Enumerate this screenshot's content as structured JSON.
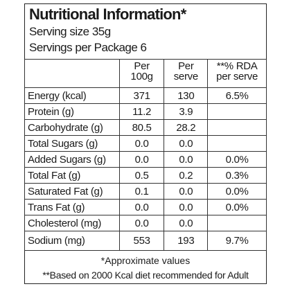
{
  "header": {
    "title": "Nutritional Information*",
    "serving_size": "Serving size 35g",
    "servings_per_package": "Servings per Package 6"
  },
  "table": {
    "columns": [
      [
        "Per",
        "100g"
      ],
      [
        "Per",
        "serve"
      ],
      [
        "**% RDA",
        "per serve"
      ]
    ],
    "rows": [
      [
        "Energy (kcal)",
        "371",
        "130",
        "6.5%"
      ],
      [
        "Protein (g)",
        "11.2",
        "3.9",
        null
      ],
      [
        "Carbohydrate (g)",
        "80.5",
        "28.2",
        null
      ],
      [
        "Total Sugars (g)",
        "0.0",
        "0.0",
        null
      ],
      [
        "Added Sugars (g)",
        "0.0",
        "0.0",
        "0.0%"
      ],
      [
        "Total Fat (g)",
        "0.5",
        "0.2",
        "0.3%"
      ],
      [
        "Saturated Fat (g)",
        "0.1",
        "0.0",
        "0.0%"
      ],
      [
        "Trans Fat (g)",
        "0.0",
        "0.0",
        "0.0%"
      ],
      [
        "Cholesterol (mg)",
        "0.0",
        "0.0",
        null
      ],
      [
        "Sodium (mg)",
        "553",
        "193",
        "9.7%"
      ]
    ]
  },
  "footer": {
    "note1": "*Approximate values",
    "note2": "**Based on 2000 Kcal diet recommended for Adult"
  }
}
